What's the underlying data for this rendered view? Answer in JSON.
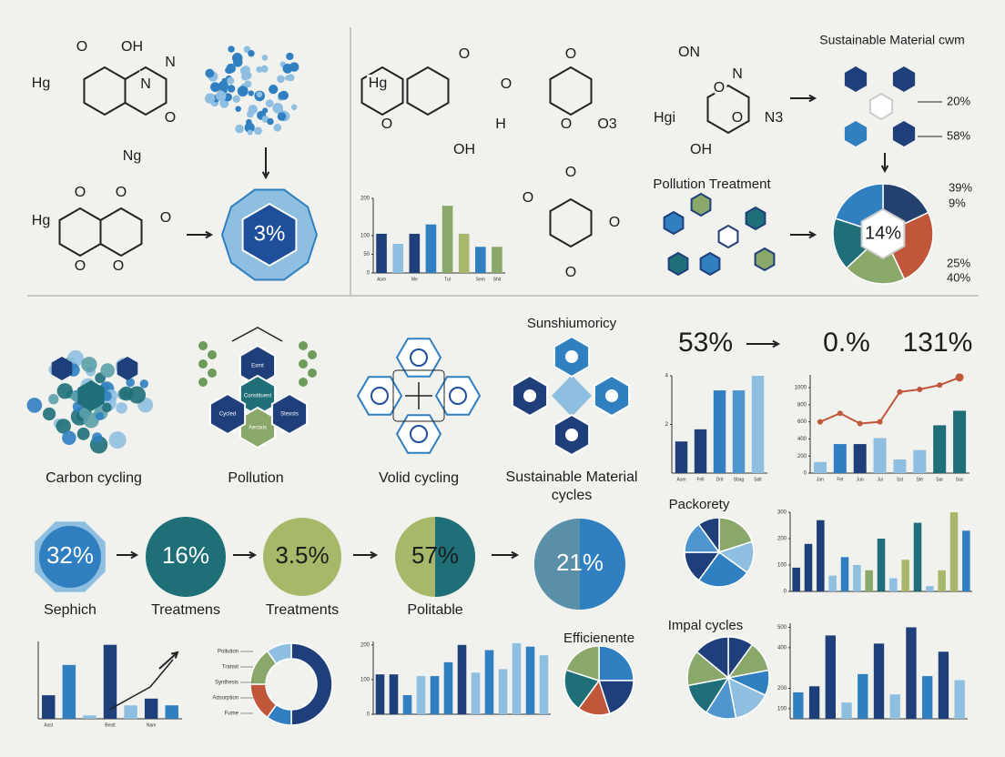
{
  "molecule_labels": [
    "Hg",
    "O",
    "OH",
    "N",
    "N",
    "O",
    "Ng",
    "Hg",
    "O",
    "O",
    "O",
    "O",
    "O",
    "Hg",
    "O",
    "O",
    "O",
    "OH",
    "H",
    "O",
    "O",
    "O3",
    "O",
    "O",
    "O",
    "O",
    "ON",
    "N",
    "Hgi",
    "O",
    "OH",
    "O",
    "N3"
  ],
  "badge": "3%",
  "sustainable": {
    "title": "Sustainable Material cwm",
    "labels": [
      "20%",
      "58%"
    ]
  },
  "pollution_treatment": "Pollution Treatment",
  "main_pie_badge": "14%",
  "main_pie_labels": [
    "39%",
    "9%",
    "25%",
    "40%"
  ],
  "cycles": [
    "Carbon cycling",
    "Pollution",
    "Volid cycling",
    "Sustainable Material",
    "cycles"
  ],
  "cycle_node_labels": [
    "Exmt",
    "Constituent",
    "Aeroxis",
    "Cycled",
    "Stexsts"
  ],
  "heading": "Sunshiumoricy",
  "stats": [
    "53%",
    "0.%",
    "131%"
  ],
  "circles": [
    {
      "value": "32%",
      "label": "Sephich"
    },
    {
      "value": "16%",
      "label": "Treatmens"
    },
    {
      "value": "3.5%",
      "label": "Treatments"
    },
    {
      "value": "57%",
      "label": "Politable"
    },
    {
      "value": "21%"
    }
  ],
  "packorety": "Packorety",
  "impal": "Impal cycles",
  "efficiente": "Efficienente",
  "charts": {
    "a": {
      "type": "bar",
      "ylim": [
        0,
        200
      ],
      "yticks": [
        0,
        50,
        100,
        200
      ],
      "values": [
        105,
        78,
        105,
        130,
        180,
        105,
        70,
        70
      ],
      "colors": [
        "#1f3f7a",
        "#8fbfe0",
        "#1f3f7a",
        "#2f7fc1",
        "#8aa86a",
        "#a8b86a",
        "#2f7fc1",
        "#8aa86a"
      ],
      "categories": [
        "Asm",
        null,
        "Me",
        null,
        "Tul",
        null,
        "Sem",
        "Shit"
      ]
    },
    "b": {
      "type": "bar",
      "ylim": [
        0,
        4
      ],
      "yticks": [
        2,
        4
      ],
      "values": [
        1.3,
        1.8,
        3.4,
        3.4,
        4.0
      ],
      "colors": [
        "#1f3f7a",
        "#1f3f7a",
        "#2f7fc1",
        "#4f96d0",
        "#8fbfe0"
      ],
      "categories": [
        "Asm",
        "Fell",
        "Drit",
        "Sbag",
        "Salt"
      ]
    },
    "c": {
      "type": "bar",
      "ylim": [
        0,
        1150
      ],
      "yticks": [
        0,
        200,
        400,
        600,
        800,
        1000
      ],
      "values": [
        130,
        340,
        340,
        410,
        160,
        270,
        560,
        730
      ],
      "colors": [
        "#8fbfe0",
        "#2f7fc1",
        "#1f3f7a",
        "#8fbfe0",
        "#8fbfe0",
        "#8fbfe0",
        "#1f6f78",
        "#1f6f78"
      ],
      "line": [
        600,
        700,
        580,
        600,
        950,
        980,
        1030,
        1120
      ],
      "line_color": "#c0563a",
      "categories": [
        "Jan",
        "Fel",
        "Jun",
        "Jul",
        "Sst",
        "Ste",
        "Sar",
        "Sac"
      ]
    },
    "d": {
      "type": "bar",
      "ylim": [
        0,
        300
      ],
      "yticks": [
        0,
        100,
        200,
        300
      ],
      "values": [
        90,
        180,
        270,
        60,
        130,
        100,
        80,
        200,
        50,
        120,
        260,
        20,
        80,
        300,
        230
      ],
      "colors": [
        "#1f3f7a",
        "#1f3f7a",
        "#1f3f7a",
        "#8fbfe0",
        "#2f7fc1",
        "#8fbfe0",
        "#8aa86a",
        "#1f6f78",
        "#8fbfe0",
        "#a8b86a",
        "#1f6f78",
        "#8fbfe0",
        "#a8b86a",
        "#a8b86a",
        "#2f7fc1"
      ]
    },
    "e": {
      "type": "bar",
      "ylim": [
        50,
        520
      ],
      "yticks": [
        100,
        200,
        400,
        500
      ],
      "values": [
        180,
        210,
        460,
        130,
        270,
        420,
        170,
        500,
        260,
        380,
        240
      ],
      "colors": [
        "#2f7fc1",
        "#1f3f7a",
        "#1f3f7a",
        "#8fbfe0",
        "#2f7fc1",
        "#1f3f7a",
        "#8fbfe0",
        "#1f3f7a",
        "#2f7fc1",
        "#1f3f7a",
        "#8fbfe0"
      ]
    },
    "f": {
      "type": "bar",
      "ylim": [
        0,
        210
      ],
      "yticks": [
        0,
        100,
        200
      ],
      "values": [
        115,
        115,
        55,
        110,
        110,
        150,
        200,
        120,
        185,
        130,
        205,
        195,
        170
      ],
      "colors": [
        "#1f3f7a",
        "#1f3f7a",
        "#2f7fc1",
        "#8fbfe0",
        "#2f7fc1",
        "#2f7fc1",
        "#1f3f7a",
        "#8fbfe0",
        "#2f7fc1",
        "#8fbfe0",
        "#8fbfe0",
        "#2f7fc1",
        "#8fbfe0"
      ]
    },
    "g": {
      "type": "bar",
      "ylim": [
        0,
        230
      ],
      "values": [
        70,
        160,
        10,
        220,
        40,
        60,
        40
      ],
      "colors": [
        "#1f3f7a",
        "#2f7fc1",
        "#8fbfe0",
        "#1f3f7a",
        "#8fbfe0",
        "#1f3f7a",
        "#2f7fc1"
      ],
      "categories": [
        "Asst",
        null,
        null,
        "Bestt",
        null,
        "Nam",
        null
      ]
    }
  },
  "pies": {
    "main": {
      "type": "pie",
      "values": [
        18,
        25,
        20,
        17,
        20
      ],
      "colors": [
        "#24406e",
        "#c0563a",
        "#8aa86a",
        "#1f6f78",
        "#2f7fc1"
      ]
    },
    "packorety": {
      "type": "pie",
      "values": [
        20,
        15,
        25,
        15,
        15,
        10
      ],
      "colors": [
        "#8aa86a",
        "#8fbfe0",
        "#2f7fc1",
        "#1f3f7a",
        "#4f96d0",
        "#1f3f7a"
      ]
    },
    "efficiente": {
      "type": "pie",
      "values": [
        25,
        20,
        15,
        20,
        20
      ],
      "colors": [
        "#2f7fc1",
        "#1f3f7a",
        "#c0563a",
        "#1f6f78",
        "#8aa86a"
      ]
    },
    "impal": {
      "type": "pie",
      "values": [
        10,
        12,
        10,
        15,
        12,
        13,
        14,
        14
      ],
      "colors": [
        "#1f3f7a",
        "#8aa86a",
        "#2f7fc1",
        "#8fbfe0",
        "#4f96d0",
        "#1f6f78",
        "#8aa86a",
        "#1f3f7a"
      ]
    },
    "donut": {
      "type": "donut",
      "values": [
        50,
        10,
        15,
        15,
        10
      ],
      "colors": [
        "#1f3f7a",
        "#2f7fc1",
        "#c0563a",
        "#8aa86a",
        "#8fbfe0"
      ],
      "legend": [
        "Pollution",
        "Transit",
        "Synthesis",
        "Adsorption",
        "Fume"
      ]
    }
  }
}
